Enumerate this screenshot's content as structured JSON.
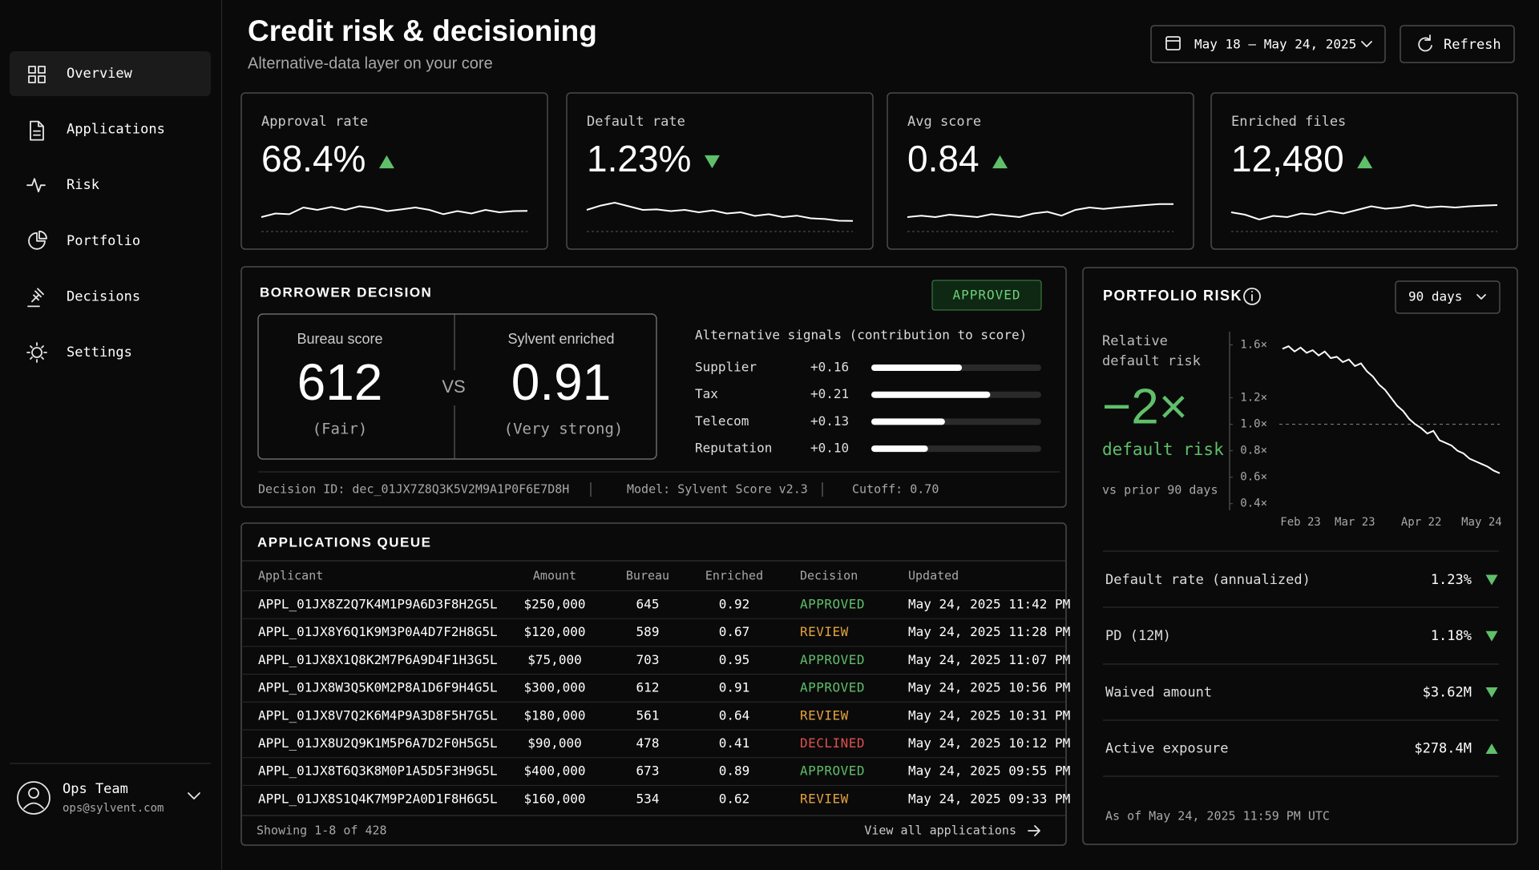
{
  "sidebar": {
    "nav": [
      "Overview",
      "Applications",
      "Risk",
      "Portfolio",
      "Decisions",
      "Settings"
    ],
    "user": {
      "name": "Ops Team",
      "email": "ops@sylvent.com"
    }
  },
  "header": {
    "title": "Credit risk & decisioning",
    "subtitle": "Alternative-data layer on your core",
    "date_range": "May 18 – May 24, 2025",
    "refresh": "Refresh"
  },
  "kpis": [
    {
      "label": "Approval rate",
      "value": "68.4%",
      "trend": "up",
      "sparkline": [
        0.3,
        0.45,
        0.42,
        0.7,
        0.6,
        0.72,
        0.6,
        0.75,
        0.68,
        0.55,
        0.62,
        0.7,
        0.6,
        0.42,
        0.55,
        0.45,
        0.6,
        0.5,
        0.55,
        0.56
      ]
    },
    {
      "label": "Default rate",
      "value": "1.23%",
      "trend": "down",
      "sparkline": [
        0.6,
        0.78,
        0.9,
        0.75,
        0.6,
        0.62,
        0.55,
        0.6,
        0.5,
        0.58,
        0.45,
        0.5,
        0.35,
        0.42,
        0.3,
        0.36,
        0.25,
        0.22,
        0.15,
        0.14
      ]
    },
    {
      "label": "Avg score",
      "value": "0.84",
      "trend": "up",
      "sparkline": [
        0.3,
        0.36,
        0.3,
        0.4,
        0.35,
        0.3,
        0.42,
        0.36,
        0.3,
        0.45,
        0.52,
        0.36,
        0.6,
        0.7,
        0.64,
        0.7,
        0.75,
        0.8,
        0.84,
        0.84
      ]
    },
    {
      "label": "Enriched files",
      "value": "12,480",
      "trend": "up",
      "sparkline": [
        0.5,
        0.4,
        0.2,
        0.35,
        0.3,
        0.45,
        0.4,
        0.55,
        0.45,
        0.6,
        0.75,
        0.65,
        0.7,
        0.8,
        0.7,
        0.74,
        0.7,
        0.75,
        0.78,
        0.8
      ]
    }
  ],
  "borrower_decision": {
    "title": "BORROWER DECISION",
    "status": "APPROVED",
    "bureau": {
      "label": "Bureau score",
      "score": 612,
      "note": "(Fair)"
    },
    "vs": "VS",
    "enriched": {
      "label": "Sylvent enriched",
      "score": 0.91,
      "note": "(Very strong)"
    },
    "signals_title": "Alternative signals (contribution to score)",
    "signals": [
      {
        "name": "Supplier",
        "value": 0.16,
        "value_label": "+0.16"
      },
      {
        "name": "Tax",
        "value": 0.21,
        "value_label": "+0.21"
      },
      {
        "name": "Telecom",
        "value": 0.13,
        "value_label": "+0.13"
      },
      {
        "name": "Reputation",
        "value": 0.1,
        "value_label": "+0.10"
      }
    ],
    "footer": [
      "Decision ID: dec_01JX7Z8Q3K5V2M9A1P0F6E7D8H",
      "Model: Sylvent Score v2.3",
      "Cutoff: 0.70"
    ]
  },
  "applications_queue": {
    "title": "APPLICATIONS QUEUE",
    "columns": [
      "Applicant",
      "Amount",
      "Bureau",
      "Enriched",
      "Decision",
      "Updated"
    ],
    "decision_colors": {
      "APPROVED": "#5fbf6a",
      "REVIEW": "#e3a33c",
      "DECLINED": "#e0504f"
    },
    "rows": [
      [
        "APPL_01JX8Z2Q7K4M1P9A6D3F8H2G5L",
        "$250,000",
        645,
        0.92,
        "APPROVED",
        "May 24, 2025 11:42 PM"
      ],
      [
        "APPL_01JX8Y6Q1K9M3P0A4D7F2H8G5L",
        "$120,000",
        589,
        0.67,
        "REVIEW",
        "May 24, 2025 11:28 PM"
      ],
      [
        "APPL_01JX8X1Q8K2M7P6A9D4F1H3G5L",
        "$75,000",
        703,
        0.95,
        "APPROVED",
        "May 24, 2025 11:07 PM"
      ],
      [
        "APPL_01JX8W3Q5K0M2P8A1D6F9H4G5L",
        "$300,000",
        612,
        0.91,
        "APPROVED",
        "May 24, 2025 10:56 PM"
      ],
      [
        "APPL_01JX8V7Q2K6M4P9A3D8F5H7G5L",
        "$180,000",
        561,
        0.64,
        "REVIEW",
        "May 24, 2025 10:31 PM"
      ],
      [
        "APPL_01JX8U2Q9K1M5P6A7D2F0H5G5L",
        "$90,000",
        478,
        0.41,
        "DECLINED",
        "May 24, 2025 10:12 PM"
      ],
      [
        "APPL_01JX8T6Q3K8M0P1A5D5F3H9G5L",
        "$400,000",
        673,
        0.89,
        "APPROVED",
        "May 24, 2025 09:55 PM"
      ],
      [
        "APPL_01JX8S1Q4K7M9P2A0D1F8H6G5L",
        "$160,000",
        534,
        0.62,
        "REVIEW",
        "May 24, 2025 09:33 PM"
      ]
    ],
    "footer": "Showing 1-8 of 428",
    "link": "View all applications"
  },
  "portfolio_risk": {
    "title": "PORTFOLIO RISK",
    "period": "90 days",
    "metric_label": "Relative default risk",
    "headline": "−2×",
    "headline_caption": "default risk",
    "comparison": "vs prior 90 days",
    "chart": {
      "type": "line",
      "color": "#ffffff",
      "values": [
        1.57,
        1.59,
        1.55,
        1.58,
        1.54,
        1.56,
        1.52,
        1.55,
        1.5,
        1.51,
        1.47,
        1.49,
        1.44,
        1.46,
        1.4,
        1.36,
        1.3,
        1.26,
        1.2,
        1.14,
        1.1,
        1.04,
        1.0,
        0.97,
        0.93,
        0.95,
        0.88,
        0.86,
        0.84,
        0.8,
        0.78,
        0.74,
        0.72,
        0.7,
        0.68,
        0.65,
        0.63
      ],
      "categories": [
        null,
        null,
        null,
        "Feb 23",
        null,
        null,
        null,
        null,
        null,
        null,
        null,
        null,
        "Mar 23",
        null,
        null,
        null,
        null,
        null,
        null,
        null,
        null,
        null,
        null,
        "Apr 22",
        null,
        null,
        null,
        null,
        null,
        null,
        null,
        null,
        null,
        "May 24",
        null,
        null,
        null
      ],
      "ylim": [
        0.35,
        1.7
      ],
      "yticks": [
        {
          "value": 1.6,
          "label": "1.6×"
        },
        {
          "value": 1.2,
          "label": "1.2×"
        },
        {
          "value": 1.0,
          "label": "1.0×"
        },
        {
          "value": 0.8,
          "label": "0.8×"
        },
        {
          "value": 0.6,
          "label": "0.6×"
        },
        {
          "value": 0.4,
          "label": "0.4×"
        }
      ],
      "reference": 1.0
    },
    "metrics": [
      {
        "label": "Default rate (annualized)",
        "value": "1.23%",
        "trend": "down"
      },
      {
        "label": "PD (12M)",
        "value": "1.18%",
        "trend": "down"
      },
      {
        "label": "Waived amount",
        "value": "$3.62M",
        "trend": "down"
      },
      {
        "label": "Active exposure",
        "value": "$278.4M",
        "trend": "up"
      }
    ],
    "as_of": "As of May 24, 2025 11:59 PM UTC"
  }
}
